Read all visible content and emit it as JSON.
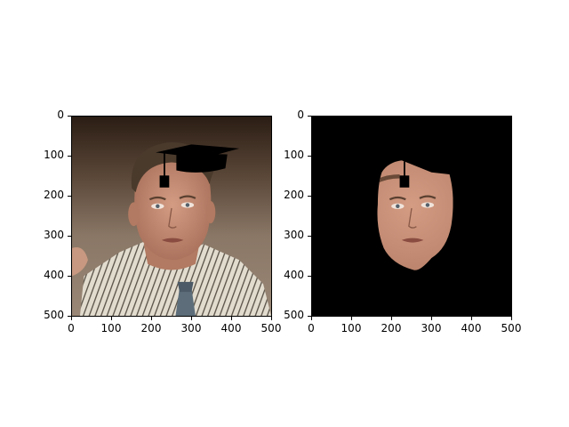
{
  "panels": [
    {
      "name": "original-photo-panel",
      "x_ticks": [
        "0",
        "100",
        "200",
        "300",
        "400",
        "500"
      ],
      "y_ticks": [
        "0",
        "100",
        "200",
        "300",
        "400",
        "500"
      ],
      "colors": {
        "background": "#3a2a20",
        "wall": "#8a7766",
        "shirt": "#d9d2c4",
        "skin": "#c69077",
        "hair": "#4a3a2c",
        "cap": "#000000",
        "tie": "#5d6e7a"
      }
    },
    {
      "name": "masked-face-panel",
      "x_ticks": [
        "0",
        "100",
        "200",
        "300",
        "400",
        "500"
      ],
      "y_ticks": [
        "0",
        "100",
        "200",
        "300",
        "400",
        "500"
      ],
      "colors": {
        "background": "#000000",
        "skin": "#c69077",
        "cap": "#000000"
      }
    }
  ]
}
